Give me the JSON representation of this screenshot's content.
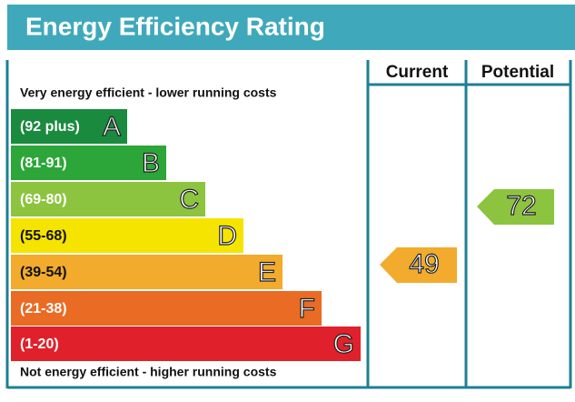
{
  "title": "Energy Efficiency Rating",
  "top_note": "Very energy efficient - lower running costs",
  "bottom_note": "Not energy efficient - higher running costs",
  "columns": [
    "Current",
    "Potential"
  ],
  "bands": [
    {
      "range": "(92 plus)",
      "letter": "A"
    },
    {
      "range": "(81-91)",
      "letter": "B"
    },
    {
      "range": "(69-80)",
      "letter": "C"
    },
    {
      "range": "(55-68)",
      "letter": "D"
    },
    {
      "range": "(39-54)",
      "letter": "E"
    },
    {
      "range": "(21-38)",
      "letter": "F"
    },
    {
      "range": "(1-20)",
      "letter": "G"
    }
  ],
  "current": 49,
  "potential": 72
}
